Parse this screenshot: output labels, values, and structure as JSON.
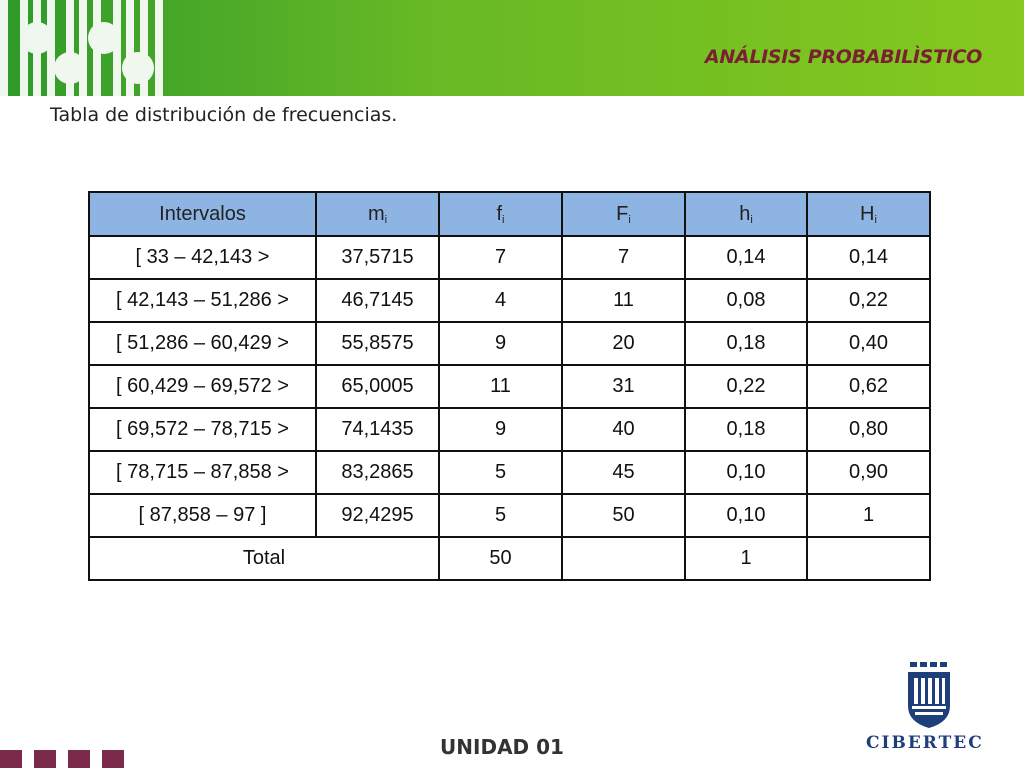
{
  "header": {
    "title": "ANÁLISIS PROBABILÌSTICO"
  },
  "subtitle": "Tabla de distribución de frecuencias.",
  "table": {
    "headers": [
      {
        "base": "Intervalos",
        "sub": ""
      },
      {
        "base": "m",
        "sub": "i"
      },
      {
        "base": "f",
        "sub": "i"
      },
      {
        "base": "F",
        "sub": "i"
      },
      {
        "base": "h",
        "sub": "i"
      },
      {
        "base": "H",
        "sub": "i"
      }
    ],
    "rows": [
      [
        "[ 33 – 42,143 >",
        "37,5715",
        "7",
        "7",
        "0,14",
        "0,14"
      ],
      [
        "[ 42,143 – 51,286 >",
        "46,7145",
        "4",
        "11",
        "0,08",
        "0,22"
      ],
      [
        "[ 51,286 – 60,429 >",
        "55,8575",
        "9",
        "20",
        "0,18",
        "0,40"
      ],
      [
        "[ 60,429 – 69,572 >",
        "65,0005",
        "11",
        "31",
        "0,22",
        "0,62"
      ],
      [
        "[ 69,572 – 78,715 >",
        "74,1435",
        "9",
        "40",
        "0,18",
        "0,80"
      ],
      [
        "[ 78,715 – 87,858 >",
        "83,2865",
        "5",
        "45",
        "0,10",
        "0,90"
      ],
      [
        "[ 87,858 – 97 ]",
        "92,4295",
        "5",
        "50",
        "0,10",
        "1"
      ]
    ],
    "total": {
      "label": "Total",
      "f": "50",
      "F": "",
      "h": "1",
      "H": ""
    }
  },
  "footer": {
    "unit": "UNIDAD 01"
  },
  "logo": {
    "text": "CIBERTEC"
  },
  "colors": {
    "header_green": "#7cc223",
    "title_maroon": "#7a2030",
    "table_header_blue": "#8db4e2",
    "logo_blue": "#1f3f7a"
  }
}
